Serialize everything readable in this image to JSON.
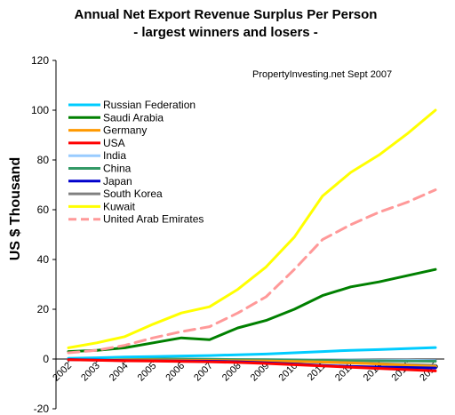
{
  "chart_data": {
    "type": "line",
    "title": "Annual Net Export Revenue Surplus Per Person",
    "subtitle": "-  largest winners and losers -",
    "ylabel": "US $ Thousand",
    "xlabel": "",
    "annotation": "PropertyInvesting.net     Sept 2007",
    "ylim": [
      -20,
      120
    ],
    "yticks": [
      -20,
      0,
      20,
      40,
      60,
      80,
      100,
      120
    ],
    "grid": false,
    "legend_position": "top-left",
    "x": [
      "2002",
      "2003",
      "2004",
      "2005",
      "2006",
      "2007",
      "2008",
      "2009",
      "2010",
      "2011",
      "2012",
      "2013",
      "2014",
      "2015"
    ],
    "series": [
      {
        "name": "Russian Federation",
        "color": "#00ccff",
        "dash": false,
        "values": [
          0.3,
          0.5,
          0.8,
          1.0,
          1.2,
          1.4,
          1.7,
          2.0,
          2.5,
          3.0,
          3.5,
          3.8,
          4.2,
          4.6
        ]
      },
      {
        "name": "Saudi Arabia",
        "color": "#008000",
        "dash": false,
        "values": [
          3.0,
          3.5,
          4.5,
          6.5,
          8.5,
          7.8,
          12.5,
          15.5,
          20.0,
          25.5,
          29.0,
          31.0,
          33.5,
          36.0
        ]
      },
      {
        "name": "Germany",
        "color": "#ff9900",
        "dash": false,
        "values": [
          -0.2,
          -0.3,
          -0.4,
          -0.4,
          -0.5,
          -0.6,
          -0.7,
          -0.8,
          -1.0,
          -1.2,
          -1.5,
          -2.0,
          -2.5,
          -3.0
        ]
      },
      {
        "name": "USA",
        "color": "#ff0000",
        "dash": false,
        "values": [
          -0.3,
          -0.5,
          -0.7,
          -0.8,
          -1.0,
          -1.1,
          -1.4,
          -1.8,
          -2.3,
          -2.8,
          -3.3,
          -3.8,
          -4.3,
          -4.8
        ]
      },
      {
        "name": "India",
        "color": "#99ccff",
        "dash": false,
        "values": [
          0.0,
          0.0,
          -0.1,
          -0.1,
          -0.1,
          -0.2,
          -0.2,
          -0.3,
          -0.3,
          -0.4,
          -0.4,
          -0.5,
          -0.5,
          -0.6
        ]
      },
      {
        "name": "China",
        "color": "#339966",
        "dash": false,
        "values": [
          0.0,
          0.1,
          0.1,
          0.1,
          0.0,
          -0.1,
          -0.2,
          -0.3,
          -0.4,
          -0.5,
          -0.6,
          -0.7,
          -0.8,
          -0.9
        ]
      },
      {
        "name": "Japan",
        "color": "#0000cc",
        "dash": false,
        "values": [
          -0.2,
          -0.4,
          -0.6,
          -0.7,
          -0.8,
          -0.9,
          -1.1,
          -1.5,
          -2.0,
          -2.6,
          -3.0,
          -3.2,
          -3.4,
          -3.6
        ]
      },
      {
        "name": "South Korea",
        "color": "#808080",
        "dash": false,
        "values": [
          -0.1,
          -0.2,
          -0.3,
          -0.4,
          -0.5,
          -0.6,
          -0.7,
          -0.8,
          -1.0,
          -1.3,
          -1.6,
          -1.9,
          -2.2,
          -2.5
        ]
      },
      {
        "name": "Kuwait",
        "color": "#ffff00",
        "dash": false,
        "values": [
          4.5,
          6.5,
          9.0,
          14.0,
          18.5,
          21.0,
          28.0,
          37.0,
          49.0,
          65.5,
          75.0,
          82.0,
          90.5,
          100.0
        ]
      },
      {
        "name": "United Arab Emirates",
        "color": "#ff9999",
        "dash": true,
        "values": [
          2.5,
          3.5,
          5.5,
          8.5,
          11.0,
          13.0,
          18.5,
          25.0,
          36.0,
          48.0,
          54.0,
          59.0,
          63.0,
          68.0
        ]
      }
    ]
  }
}
